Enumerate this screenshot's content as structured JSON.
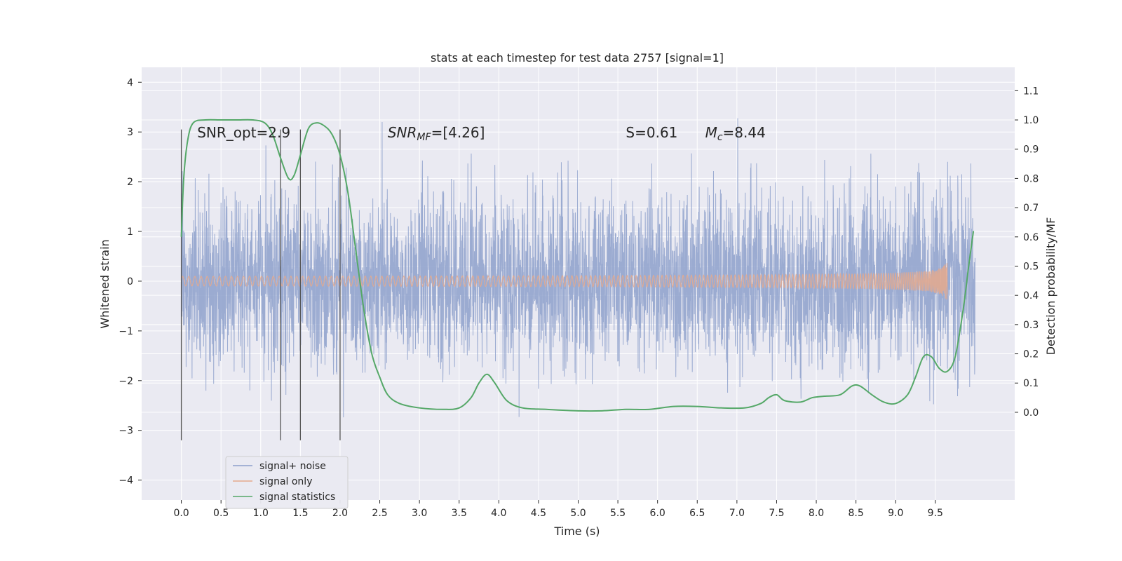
{
  "chart_data": {
    "type": "line",
    "title": "stats at each timestep for test data 2757 [signal=1]",
    "xlabel": "Time (s)",
    "ylabel": "Whitened strain",
    "ylabel_right": "Detection probability/MF",
    "xlim": [
      -0.5,
      10.5
    ],
    "ylim": [
      -4.4,
      4.3
    ],
    "ylim_right": [
      -0.3,
      1.18
    ],
    "x_ticks": [
      "0.0",
      "0.5",
      "1.0",
      "1.5",
      "2.0",
      "2.5",
      "3.0",
      "3.5",
      "4.0",
      "4.5",
      "5.0",
      "5.5",
      "6.0",
      "6.5",
      "7.0",
      "7.5",
      "8.0",
      "8.5",
      "9.0",
      "9.5"
    ],
    "y_ticks": [
      "4",
      "3",
      "2",
      "1",
      "0",
      "−1",
      "−2",
      "−3",
      "−4"
    ],
    "y_ticks_right": [
      "1.1",
      "1.0",
      "0.9",
      "0.8",
      "0.7",
      "0.6",
      "0.5",
      "0.4",
      "0.3",
      "0.2",
      "0.1",
      "0.0"
    ],
    "grid": true,
    "legend_position": "lower-left",
    "annotations": [
      {
        "id": "snr-opt",
        "text": "SNR_opt=2.9",
        "x": 0.2,
        "y": 3.0
      },
      {
        "id": "snr-mf",
        "text": "SNR_MF=[4.26]",
        "x": 2.6,
        "y": 3.0
      },
      {
        "id": "s",
        "text": "S=0.61",
        "x": 5.6,
        "y": 3.0
      },
      {
        "id": "mc",
        "text": "M_c=8.44",
        "x": 6.6,
        "y": 3.0
      }
    ],
    "vertical_markers_x": [
      0.0,
      1.25,
      1.5,
      2.0
    ],
    "series": [
      {
        "name": "signal+ noise",
        "color": "#8da0cb",
        "axis": "left",
        "noise_sigma": 0.85,
        "t_start": 0.0,
        "t_end": 10.0
      },
      {
        "name": "signal only",
        "color": "#e5a98d",
        "axis": "left",
        "chirp_end": 9.65,
        "max_amplitude": 0.38
      },
      {
        "name": "signal statistics",
        "color": "#55a868",
        "axis": "right",
        "x": [
          0.0,
          0.03,
          0.08,
          0.15,
          0.3,
          0.5,
          0.7,
          0.9,
          1.05,
          1.15,
          1.25,
          1.35,
          1.42,
          1.5,
          1.6,
          1.7,
          1.8,
          1.9,
          2.0,
          2.1,
          2.2,
          2.3,
          2.4,
          2.5,
          2.6,
          2.75,
          3.0,
          3.3,
          3.5,
          3.65,
          3.75,
          3.85,
          3.95,
          4.1,
          4.3,
          4.6,
          5.0,
          5.3,
          5.6,
          5.9,
          6.2,
          6.5,
          6.8,
          7.1,
          7.3,
          7.4,
          7.5,
          7.6,
          7.8,
          7.95,
          8.1,
          8.3,
          8.45,
          8.55,
          8.7,
          8.85,
          9.0,
          9.15,
          9.25,
          9.35,
          9.45,
          9.55,
          9.65,
          9.75,
          9.85,
          9.92,
          9.98
        ],
        "values": [
          0.6,
          0.8,
          0.93,
          0.99,
          1.0,
          1.0,
          1.0,
          1.0,
          0.99,
          0.95,
          0.87,
          0.8,
          0.81,
          0.88,
          0.97,
          0.99,
          0.98,
          0.95,
          0.88,
          0.75,
          0.55,
          0.35,
          0.2,
          0.12,
          0.06,
          0.03,
          0.015,
          0.01,
          0.015,
          0.05,
          0.1,
          0.13,
          0.1,
          0.04,
          0.015,
          0.01,
          0.005,
          0.005,
          0.01,
          0.01,
          0.02,
          0.02,
          0.015,
          0.015,
          0.03,
          0.05,
          0.06,
          0.04,
          0.035,
          0.05,
          0.055,
          0.06,
          0.09,
          0.09,
          0.06,
          0.035,
          0.03,
          0.06,
          0.12,
          0.19,
          0.19,
          0.15,
          0.14,
          0.19,
          0.35,
          0.5,
          0.62
        ]
      }
    ]
  }
}
